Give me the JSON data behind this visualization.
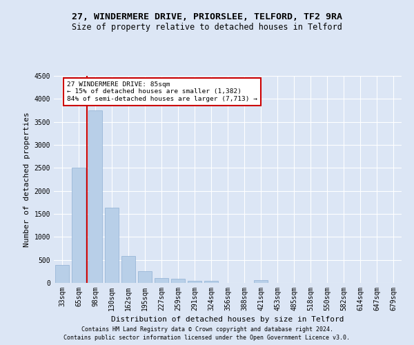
{
  "title_line1": "27, WINDERMERE DRIVE, PRIORSLEE, TELFORD, TF2 9RA",
  "title_line2": "Size of property relative to detached houses in Telford",
  "xlabel": "Distribution of detached houses by size in Telford",
  "ylabel": "Number of detached properties",
  "categories": [
    "33sqm",
    "65sqm",
    "98sqm",
    "130sqm",
    "162sqm",
    "195sqm",
    "227sqm",
    "259sqm",
    "291sqm",
    "324sqm",
    "356sqm",
    "388sqm",
    "421sqm",
    "453sqm",
    "485sqm",
    "518sqm",
    "550sqm",
    "582sqm",
    "614sqm",
    "647sqm",
    "679sqm"
  ],
  "values": [
    390,
    2500,
    3750,
    1640,
    590,
    250,
    110,
    90,
    50,
    50,
    0,
    0,
    55,
    0,
    0,
    0,
    0,
    0,
    0,
    0,
    0
  ],
  "bar_color": "#b8cfe8",
  "bar_edge_color": "#8fb0d4",
  "marker_color": "#cc0000",
  "annotation_box_edge": "#cc0000",
  "ylim": [
    0,
    4500
  ],
  "yticks": [
    0,
    500,
    1000,
    1500,
    2000,
    2500,
    3000,
    3500,
    4000,
    4500
  ],
  "footer_line1": "Contains HM Land Registry data © Crown copyright and database right 2024.",
  "footer_line2": "Contains public sector information licensed under the Open Government Licence v3.0.",
  "background_color": "#dce6f5",
  "plot_bg_color": "#dce6f5",
  "grid_color": "#ffffff",
  "title_fontsize": 9.5,
  "subtitle_fontsize": 8.5,
  "axis_label_fontsize": 8,
  "tick_fontsize": 7,
  "footer_fontsize": 6
}
